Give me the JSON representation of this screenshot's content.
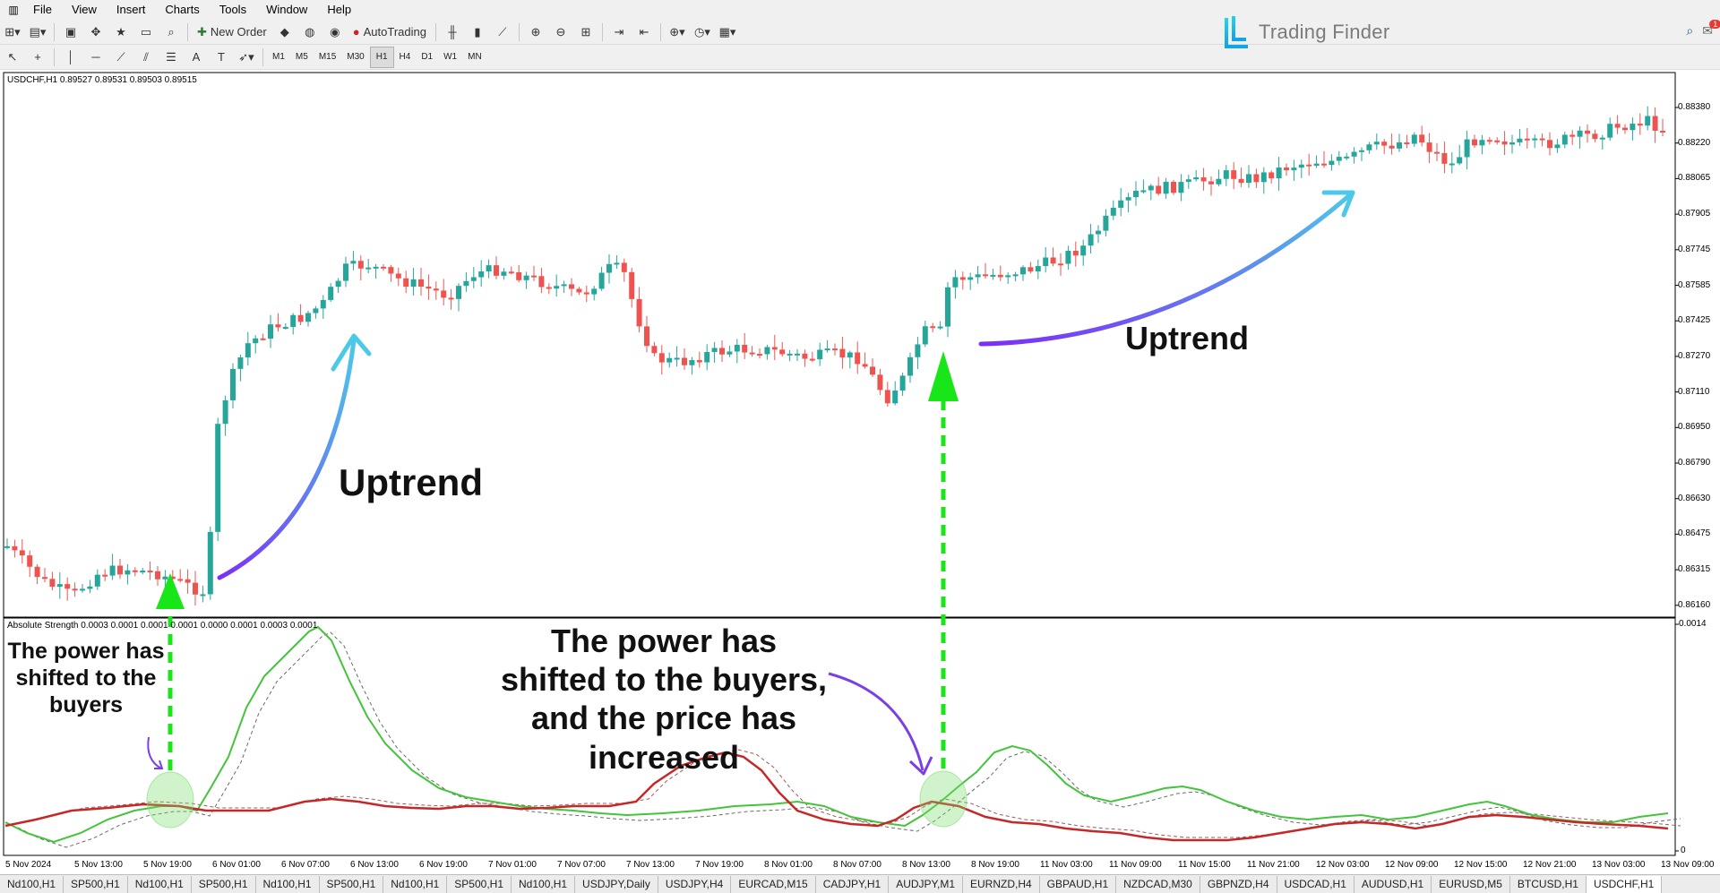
{
  "menu": [
    "File",
    "View",
    "Insert",
    "Charts",
    "Tools",
    "Window",
    "Help"
  ],
  "brand": "Trading Finder",
  "notification_count": "1",
  "toolbar": {
    "new_order": "New Order",
    "autotrading": "AutoTrading"
  },
  "timeframes": [
    "M1",
    "M5",
    "M15",
    "M30",
    "H1",
    "H4",
    "D1",
    "W1",
    "MN"
  ],
  "active_timeframe": "H1",
  "chart": {
    "symbol_header": "USDCHF,H1  0.89527 0.89531 0.89503 0.89515",
    "indicator_header": "Absolute Strength 0.0003 0.0001 0.0001 0.0001 0.0000 0.0001 0.0003 0.0001",
    "price_levels": [
      "0.88380",
      "0.88220",
      "0.88065",
      "0.87905",
      "0.87745",
      "0.87585",
      "0.87425",
      "0.87270",
      "0.87110",
      "0.86950",
      "0.86790",
      "0.86630",
      "0.86475",
      "0.86315",
      "0.86160"
    ],
    "indicator_levels": [
      "0.0014",
      "0"
    ],
    "time_labels": [
      "5 Nov 2024",
      "5 Nov 13:00",
      "5 Nov 19:00",
      "6 Nov 01:00",
      "6 Nov 07:00",
      "6 Nov 13:00",
      "6 Nov 19:00",
      "7 Nov 01:00",
      "7 Nov 07:00",
      "7 Nov 13:00",
      "7 Nov 19:00",
      "8 Nov 01:00",
      "8 Nov 07:00",
      "8 Nov 13:00",
      "8 Nov 19:00",
      "11 Nov 03:00",
      "11 Nov 09:00",
      "11 Nov 15:00",
      "11 Nov 21:00",
      "12 Nov 03:00",
      "12 Nov 09:00",
      "12 Nov 15:00",
      "12 Nov 21:00",
      "13 Nov 03:00",
      "13 Nov 09:00"
    ],
    "colors": {
      "bull": "#26a69a",
      "bear": "#ef5350",
      "ind_green": "#43c43a",
      "ind_red": "#c62828",
      "arrow_green": "#19e619"
    }
  },
  "annotations": {
    "uptrend_1": "Uptrend",
    "uptrend_2": "Uptrend",
    "power_1": "The power has shifted to the buyers",
    "power_2": "The power has shifted to the buyers, and the price has increased"
  },
  "tabs": [
    "Nd100,H1",
    "SP500,H1",
    "Nd100,H1",
    "SP500,H1",
    "Nd100,H1",
    "SP500,H1",
    "Nd100,H1",
    "SP500,H1",
    "Nd100,H1",
    "USDJPY,Daily",
    "USDJPY,H4",
    "EURCAD,M15",
    "CADJPY,H1",
    "AUDJPY,M1",
    "EURNZD,H4",
    "GBPAUD,H1",
    "NZDCAD,M30",
    "GBPNZD,H4",
    "USDCAD,H1",
    "AUDUSD,H1",
    "EURUSD,M5",
    "BTCUSD,H1",
    "USDCHF,H1"
  ],
  "active_tab": "USDCHF,H1"
}
